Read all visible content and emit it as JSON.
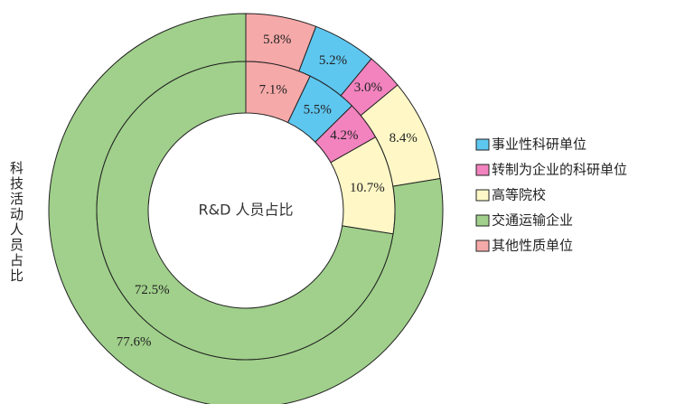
{
  "chart_data": {
    "type": "donut",
    "categories": [
      "事业性科研单位",
      "转制为企业的科研单位",
      "高等院校",
      "交通运输企业",
      "其他性质单位"
    ],
    "colors": [
      "#5ec7f0",
      "#f283bf",
      "#fff8c6",
      "#a0d08b",
      "#f6a9a9"
    ],
    "series": [
      {
        "name": "科技活动人员占比",
        "values": [
          5.2,
          3.0,
          8.4,
          77.6,
          5.8
        ],
        "value_labels": [
          "5.2%",
          "3.0%",
          "8.4%",
          "77.6%",
          "5.8%"
        ]
      },
      {
        "name": "R&D 人员占比",
        "values": [
          5.5,
          4.2,
          10.7,
          72.5,
          7.1
        ],
        "value_labels": [
          "5.5%",
          "4.2%",
          "10.7%",
          "72.5%",
          "7.1%"
        ]
      }
    ],
    "legend": "right"
  }
}
